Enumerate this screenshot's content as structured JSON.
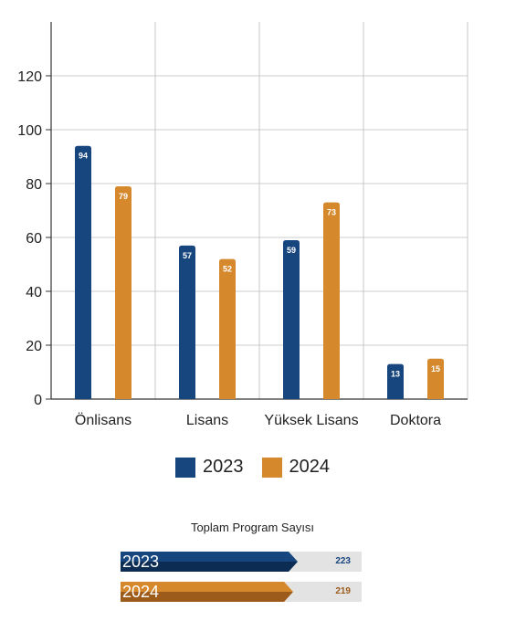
{
  "colors": {
    "y2023": "#17457e",
    "y2023_dark": "#0c2c54",
    "y2024": "#d5882c",
    "y2024_dark": "#9c5b1a",
    "grid": "#bdbdbd",
    "axis": "#333333"
  },
  "chart_data": {
    "type": "bar",
    "categories": [
      "Önlisans",
      "Lisans",
      "Yüksek Lisans",
      "Doktora"
    ],
    "series": [
      {
        "name": "2023",
        "values": [
          94,
          57,
          59,
          13
        ]
      },
      {
        "name": "2024",
        "values": [
          79,
          52,
          73,
          15
        ]
      }
    ],
    "ylim": [
      0,
      140
    ],
    "yticks": [
      "0",
      "20",
      "40",
      "60",
      "80",
      "100",
      "120"
    ],
    "grid": true,
    "legend": "bottom"
  },
  "legend": {
    "items": [
      "2023",
      "2024"
    ]
  },
  "totals": {
    "title": "Toplam Program Sayısı",
    "rows": [
      {
        "year": "2023",
        "value": "223",
        "fraction": 0.72
      },
      {
        "year": "2024",
        "value": "219",
        "fraction": 0.7
      }
    ]
  }
}
